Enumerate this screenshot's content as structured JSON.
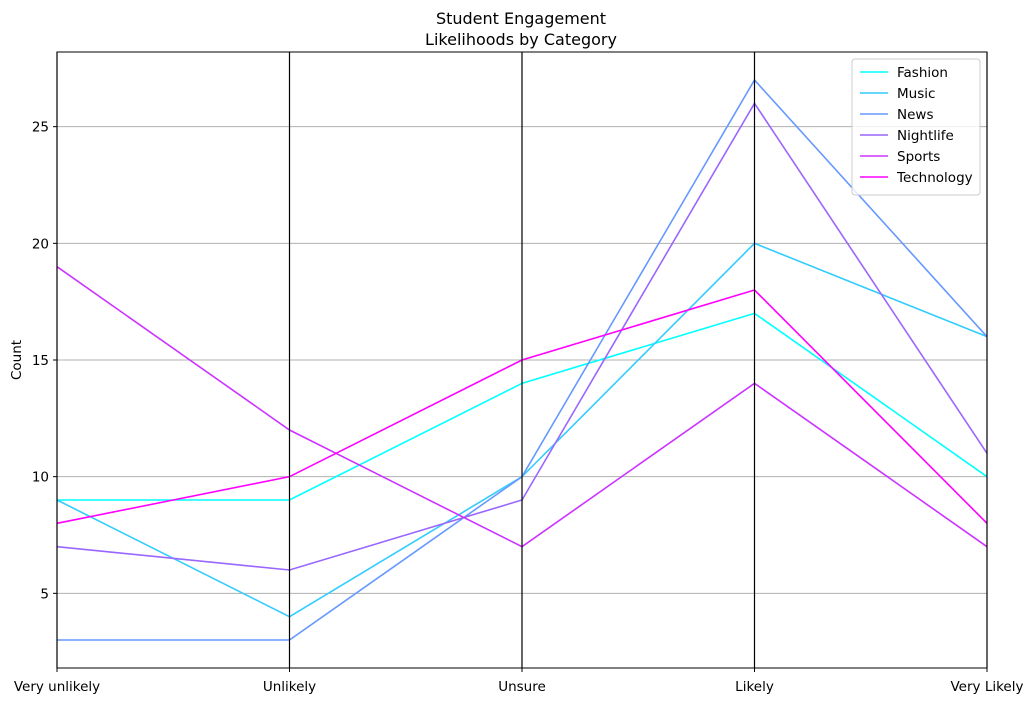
{
  "chart_data": {
    "type": "line",
    "subtype": "parallel-coordinates",
    "title_lines": [
      "Student Engagement",
      "Likelihoods by Category"
    ],
    "xlabel": "",
    "ylabel": "Count",
    "categories": [
      "Very unlikely",
      "Unlikely",
      "Unsure",
      "Likely",
      "Very Likely"
    ],
    "yticks": [
      5,
      10,
      15,
      20,
      25
    ],
    "ylim": [
      1.8,
      28.2
    ],
    "grid": "horizontal",
    "legend_position": "top-right",
    "series": [
      {
        "name": "Fashion",
        "color": "#00ffff",
        "values": [
          9,
          9,
          14,
          17,
          10
        ]
      },
      {
        "name": "Music",
        "color": "#33ccff",
        "values": [
          9,
          4,
          10,
          20,
          16
        ]
      },
      {
        "name": "News",
        "color": "#6699ff",
        "values": [
          3,
          3,
          10,
          27,
          16
        ]
      },
      {
        "name": "Nightlife",
        "color": "#9966ff",
        "values": [
          7,
          6,
          9,
          26,
          11
        ]
      },
      {
        "name": "Sports",
        "color": "#cc33ff",
        "values": [
          19,
          12,
          7,
          14,
          7
        ]
      },
      {
        "name": "Technology",
        "color": "#ff00ff",
        "values": [
          8,
          10,
          15,
          18,
          8
        ]
      }
    ]
  }
}
